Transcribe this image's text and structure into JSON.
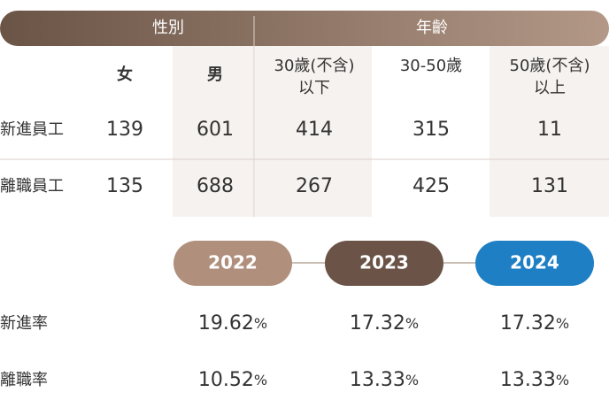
{
  "table": {
    "groups": [
      "性別",
      "年齡"
    ],
    "columns": [
      [
        "女"
      ],
      [
        "男"
      ],
      [
        "30歲(不含)",
        "以下"
      ],
      [
        "30-50歲"
      ],
      [
        "50歲(不含)",
        "以上"
      ]
    ],
    "rows": [
      {
        "label": "新進員工",
        "values": [
          139,
          601,
          414,
          315,
          11
        ]
      },
      {
        "label": "離職員工",
        "values": [
          135,
          688,
          267,
          425,
          131
        ]
      }
    ]
  },
  "rates": {
    "years": [
      "2022",
      "2023",
      "2024"
    ],
    "unit": "%",
    "rows": [
      {
        "label": "新進率",
        "values": [
          19.62,
          17.32,
          17.32
        ]
      },
      {
        "label": "離職率",
        "values": [
          10.52,
          13.33,
          13.33
        ]
      }
    ]
  }
}
